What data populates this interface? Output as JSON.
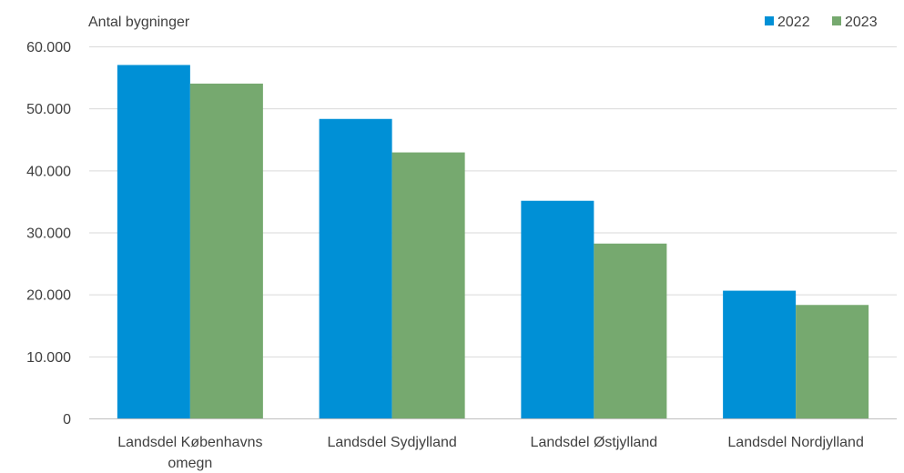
{
  "chart_data": {
    "type": "bar",
    "title": "",
    "xlabel": "",
    "ylabel": "Antal bygninger",
    "ylim": [
      0,
      60000
    ],
    "yticks": [
      0,
      10000,
      20000,
      30000,
      40000,
      50000,
      60000
    ],
    "ytick_labels": [
      "0",
      "10.000",
      "20.000",
      "30.000",
      "40.000",
      "50.000",
      "60.000"
    ],
    "categories": [
      [
        "Landsdel Københavns",
        "omegn"
      ],
      [
        "Landsdel Sydjylland"
      ],
      [
        "Landsdel Østjylland"
      ],
      [
        "Landsdel Nordjylland"
      ]
    ],
    "series": [
      {
        "name": "2022",
        "color": "#0090d6",
        "values": [
          57000,
          48300,
          35100,
          20600
        ]
      },
      {
        "name": "2023",
        "color": "#76a96f",
        "values": [
          54000,
          42900,
          28200,
          18300
        ]
      }
    ],
    "grid": true,
    "legend": "top-right"
  }
}
